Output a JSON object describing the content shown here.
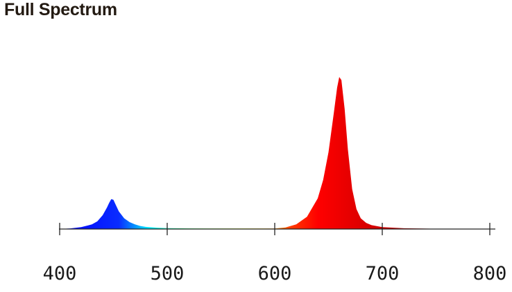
{
  "title": "Full Spectrum",
  "chart_data": {
    "type": "area",
    "title": "Full Spectrum",
    "xlabel": "",
    "ylabel": "",
    "xlim": [
      400,
      800
    ],
    "ylim": [
      0,
      1
    ],
    "grid": false,
    "x_ticks": [
      400,
      500,
      600,
      700,
      800
    ],
    "x_tick_labels": [
      "400",
      "500",
      "600",
      "700",
      "800"
    ],
    "series": [
      {
        "color": "#0a12e6",
        "x": [
          400,
          410,
          420,
          430,
          435,
          440,
          444,
          446,
          448,
          450,
          452,
          455,
          460,
          465,
          470,
          475,
          480,
          490,
          500,
          520,
          540,
          560,
          580,
          600
        ],
        "y": [
          0,
          0.004,
          0.012,
          0.03,
          0.05,
          0.09,
          0.14,
          0.17,
          0.195,
          0.19,
          0.16,
          0.115,
          0.07,
          0.045,
          0.03,
          0.02,
          0.014,
          0.009,
          0.006,
          0.004,
          0.003,
          0.003,
          0.003,
          0.003
        ]
      },
      {
        "color": "#ff0000",
        "x": [
          600,
          610,
          620,
          630,
          640,
          645,
          650,
          655,
          658,
          660,
          662,
          665,
          668,
          672,
          676,
          680,
          685,
          690,
          700,
          720,
          750,
          780,
          800
        ],
        "y": [
          0.003,
          0.01,
          0.03,
          0.08,
          0.2,
          0.32,
          0.5,
          0.76,
          0.92,
          0.99,
          0.97,
          0.78,
          0.52,
          0.26,
          0.13,
          0.07,
          0.04,
          0.025,
          0.012,
          0.005,
          0.002,
          0.001,
          0
        ]
      }
    ],
    "gradient_colors": [
      "#0000ff",
      "#0a2cff",
      "#00e5ff",
      "#33ff77",
      "#e6ff00",
      "#ffd000",
      "#ff3a00",
      "#ff0000",
      "#7a0000"
    ]
  }
}
